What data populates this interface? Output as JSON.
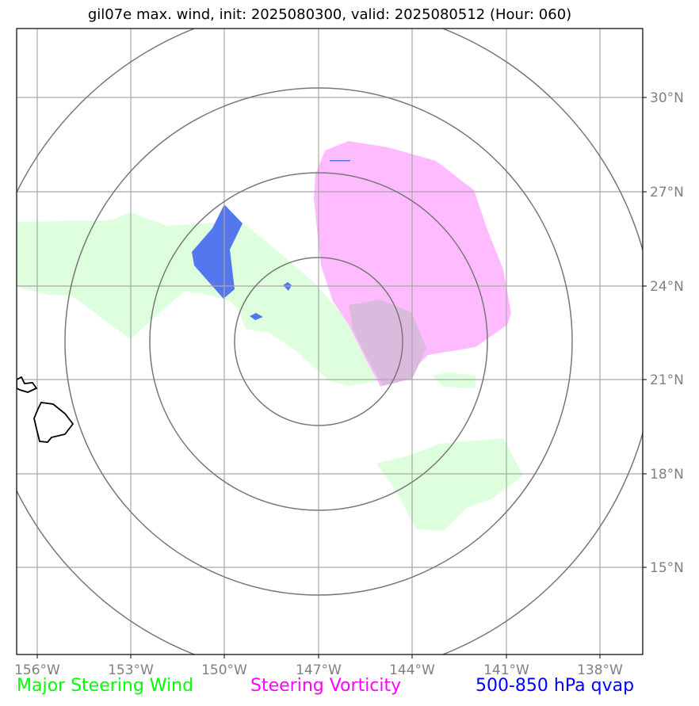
{
  "title": "gil07e max. wind, init: 2025080300, valid: 2025080512 (Hour: 060)",
  "longitude_ticks": [
    "156°W",
    "153°W",
    "150°W",
    "147°W",
    "144°W",
    "141°W",
    "138°W"
  ],
  "latitude_ticks": [
    "30°N",
    "27°N",
    "24°N",
    "21°N",
    "18°N",
    "15°N"
  ],
  "legend": [
    {
      "label": "Major Steering Wind",
      "color": "#00ff00"
    },
    {
      "label": "Steering Vorticity",
      "color": "#ff00ff"
    },
    {
      "label": "500-850 hPa qvap",
      "color": "#0000ff"
    }
  ],
  "layer_colors": {
    "steering_wind_fill": "#ddffdd",
    "steering_vorticity_fill": "#ffbbff",
    "overlap_fill": "#dbbbdd",
    "qvap_fill": "#5577ee",
    "range_rings": "#777777",
    "gridlines": "#a8a8a8",
    "coastline": "#000000"
  }
}
